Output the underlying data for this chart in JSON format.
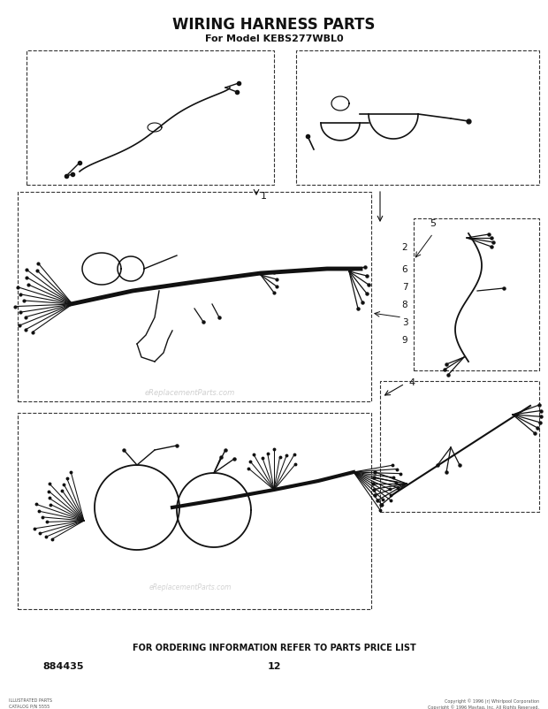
{
  "title": "WIRING HARNESS PARTS",
  "subtitle": "For Model KEBS277WBL0",
  "footer_text": "FOR ORDERING INFORMATION REFER TO PARTS PRICE LIST",
  "part_number": "884435",
  "page_number": "12",
  "watermark": "eReplacementParts.com",
  "bg_color": "#ffffff",
  "lc": "#111111",
  "copyright_left": "ILLUSTRATED PARTS\nCATALOG P/N 5555",
  "copyright_right": "Copyright © 1996 (r) Whirlpool Corporation\nCopyright © 1996 Maytag, Inc. All Rights Reserved."
}
